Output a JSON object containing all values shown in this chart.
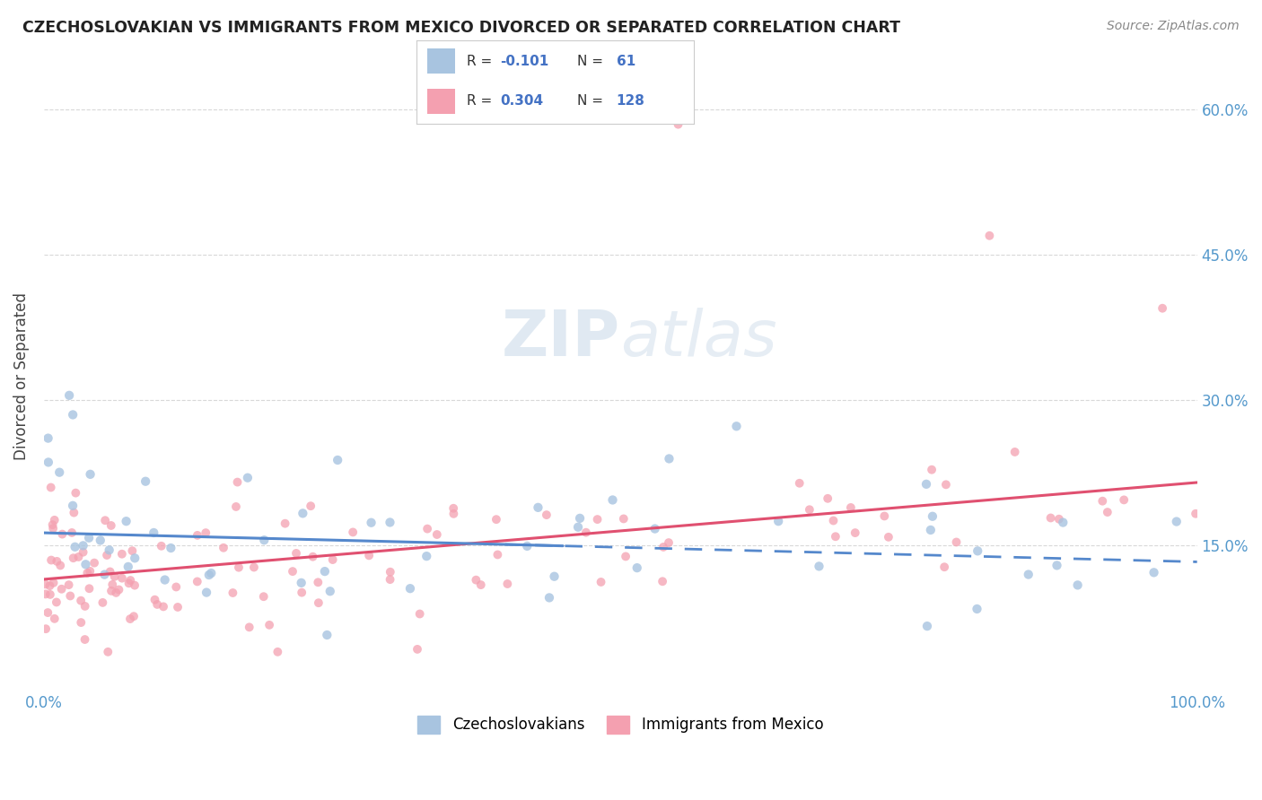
{
  "title": "CZECHOSLOVAKIAN VS IMMIGRANTS FROM MEXICO DIVORCED OR SEPARATED CORRELATION CHART",
  "source": "Source: ZipAtlas.com",
  "ylabel": "Divorced or Separated",
  "legend_label1": "Czechoslovakians",
  "legend_label2": "Immigrants from Mexico",
  "r1": -0.101,
  "n1": 61,
  "r2": 0.304,
  "n2": 128,
  "color1": "#a8c4e0",
  "color2": "#f4a0b0",
  "trend1_solid_color": "#5588cc",
  "trend2_color": "#e05070",
  "background_color": "#ffffff",
  "grid_color": "#d8d8d8",
  "xmin": 0.0,
  "xmax": 1.0,
  "ymin": 0.0,
  "ymax": 0.65,
  "yticks": [
    0.15,
    0.3,
    0.45,
    0.6
  ],
  "ytick_labels": [
    "15.0%",
    "30.0%",
    "45.0%",
    "60.0%"
  ]
}
